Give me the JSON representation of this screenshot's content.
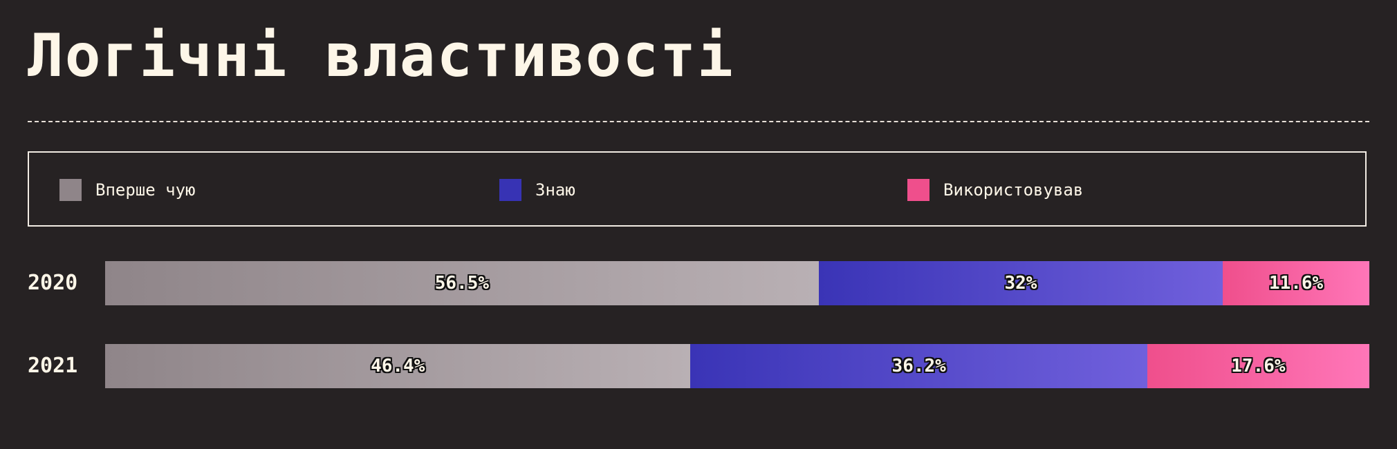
{
  "title": "Логічні властивості",
  "legend": [
    {
      "label": "Вперше чую",
      "color": "#8f8589"
    },
    {
      "label": "Знаю",
      "color": "#3733b4"
    },
    {
      "label": "Використовував",
      "color": "#ef4f8c"
    }
  ],
  "chart_data": {
    "type": "bar",
    "orientation": "horizontal",
    "stacked": true,
    "title": "Логічні властивості",
    "categories": [
      "2020",
      "2021"
    ],
    "series": [
      {
        "name": "Вперше чую",
        "values": [
          56.5,
          46.4
        ],
        "labels": [
          "56.5%",
          "46.4%"
        ]
      },
      {
        "name": "Знаю",
        "values": [
          32,
          36.2
        ],
        "labels": [
          "32%",
          "36.2%"
        ]
      },
      {
        "name": "Використовував",
        "values": [
          11.6,
          17.6
        ],
        "labels": [
          "11.6%",
          "17.6%"
        ]
      }
    ],
    "xlim": [
      0,
      100
    ],
    "legend_position": "top",
    "gradients": [
      [
        "#8f8589",
        "#b9b0b4"
      ],
      [
        "#3a34b6",
        "#7060dc"
      ],
      [
        "#ef4f8c",
        "#ff76b8"
      ]
    ]
  }
}
